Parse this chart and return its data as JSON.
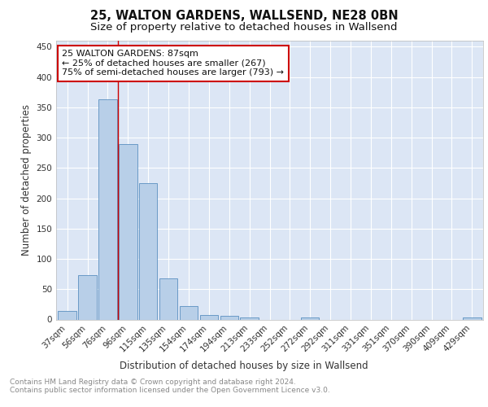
{
  "title": "25, WALTON GARDENS, WALLSEND, NE28 0BN",
  "subtitle": "Size of property relative to detached houses in Wallsend",
  "xlabel": "Distribution of detached houses by size in Wallsend",
  "ylabel": "Number of detached properties",
  "categories": [
    "37sqm",
    "56sqm",
    "76sqm",
    "96sqm",
    "115sqm",
    "135sqm",
    "154sqm",
    "174sqm",
    "194sqm",
    "213sqm",
    "233sqm",
    "252sqm",
    "272sqm",
    "292sqm",
    "311sqm",
    "331sqm",
    "351sqm",
    "370sqm",
    "390sqm",
    "409sqm",
    "429sqm"
  ],
  "values": [
    14,
    73,
    363,
    290,
    225,
    68,
    22,
    8,
    6,
    3,
    0,
    0,
    4,
    0,
    0,
    0,
    0,
    0,
    0,
    0,
    4
  ],
  "bar_color": "#b8cfe8",
  "bar_edge_color": "#5a8fc0",
  "vline_color": "#cc0000",
  "annotation_text": "25 WALTON GARDENS: 87sqm\n← 25% of detached houses are smaller (267)\n75% of semi-detached houses are larger (793) →",
  "annotation_box_facecolor": "#ffffff",
  "annotation_box_edgecolor": "#cc0000",
  "ylim": [
    0,
    460
  ],
  "yticks": [
    0,
    50,
    100,
    150,
    200,
    250,
    300,
    350,
    400,
    450
  ],
  "plot_bg_color": "#dce6f5",
  "grid_color": "#ffffff",
  "footer_text": "Contains HM Land Registry data © Crown copyright and database right 2024.\nContains public sector information licensed under the Open Government Licence v3.0.",
  "title_fontsize": 10.5,
  "subtitle_fontsize": 9.5,
  "xlabel_fontsize": 8.5,
  "ylabel_fontsize": 8.5,
  "tick_fontsize": 7.5,
  "annotation_fontsize": 8,
  "footer_fontsize": 6.5
}
